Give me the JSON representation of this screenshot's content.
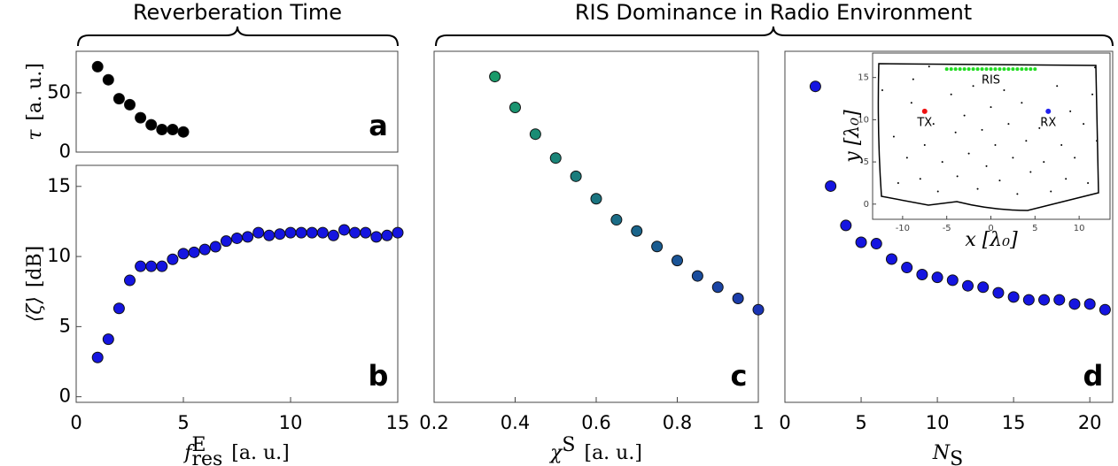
{
  "group_titles": [
    "Reverberation Time",
    "RIS Dominance in Radio Environment"
  ],
  "chart_data": [
    {
      "type": "scatter",
      "label": "a",
      "ylabel": {
        "base": "τ",
        "unit": "[a. u.]"
      },
      "x": [
        1,
        1.5,
        2,
        2.5,
        3,
        3.5,
        4,
        4.5,
        5
      ],
      "values": [
        72,
        61,
        45,
        40,
        29,
        23,
        19,
        19,
        17
      ],
      "color": "#000000",
      "xlim": [
        0,
        15
      ],
      "ylim": [
        0,
        85
      ],
      "yticks": [
        0,
        50
      ]
    },
    {
      "type": "scatter",
      "label": "b",
      "ylabel": {
        "base": "⟨ζ⟩",
        "unit": "[dB]"
      },
      "xlabel": {
        "base": "f",
        "sub": "res",
        "sup": "E",
        "unit": "[a. u.]"
      },
      "x": [
        1,
        1.5,
        2,
        2.5,
        3,
        3.5,
        4,
        4.5,
        5,
        5.5,
        6,
        6.5,
        7,
        7.5,
        8,
        8.5,
        9,
        9.5,
        10,
        10.5,
        11,
        11.5,
        12,
        12.5,
        13,
        13.5,
        14,
        14.5,
        15
      ],
      "values": [
        2.8,
        4.1,
        6.3,
        8.3,
        9.3,
        9.3,
        9.3,
        9.8,
        10.2,
        10.3,
        10.5,
        10.7,
        11.1,
        11.3,
        11.4,
        11.7,
        11.5,
        11.6,
        11.7,
        11.7,
        11.7,
        11.7,
        11.5,
        11.9,
        11.7,
        11.7,
        11.4,
        11.5,
        11.7
      ],
      "color": "#1515e0",
      "xlim": [
        0,
        15
      ],
      "ylim": [
        -0.4,
        16.5
      ],
      "xticks": [
        0,
        5,
        10,
        15
      ],
      "yticks": [
        0,
        5,
        10,
        15
      ]
    },
    {
      "type": "scatter",
      "label": "c",
      "xlabel": {
        "base": "χ",
        "sup": "S",
        "unit": "[a. u.]"
      },
      "x": [
        0.35,
        0.4,
        0.45,
        0.5,
        0.55,
        0.6,
        0.65,
        0.7,
        0.75,
        0.8,
        0.85,
        0.9,
        0.95,
        1
      ],
      "values": [
        22.8,
        20.6,
        18.7,
        17.0,
        15.7,
        14.1,
        12.6,
        11.8,
        10.7,
        9.7,
        8.6,
        7.8,
        7.0,
        6.2
      ],
      "colors": [
        "#1a9a6a",
        "#1a9470",
        "#1a8c74",
        "#1a8478",
        "#1a7c7c",
        "#1a7480",
        "#1a6c86",
        "#1a648a",
        "#1a5c90",
        "#1a5496",
        "#1a4c9c",
        "#1a44a4",
        "#1a3caa",
        "#1a34b4"
      ],
      "xlim": [
        0.2,
        1
      ],
      "ylim": [
        -0.4,
        24.6
      ],
      "xticks": [
        0.2,
        0.4,
        0.6,
        0.8,
        1
      ]
    },
    {
      "type": "scatter",
      "label": "d",
      "xlabel": {
        "base": "N",
        "sub": "S"
      },
      "x": [
        2,
        3,
        4,
        5,
        6,
        7,
        8,
        9,
        10,
        11,
        12,
        13,
        14,
        15,
        16,
        17,
        18,
        19,
        20,
        21
      ],
      "values": [
        22.1,
        15.0,
        12.2,
        11.0,
        10.9,
        9.8,
        9.2,
        8.7,
        8.5,
        8.3,
        7.9,
        7.8,
        7.4,
        7.1,
        6.9,
        6.9,
        6.9,
        6.6,
        6.6,
        6.2
      ],
      "color": "#1515e0",
      "xlim": [
        0,
        21.5
      ],
      "ylim": [
        -0.4,
        24.6
      ],
      "xticks": [
        0,
        5,
        10,
        15,
        20
      ]
    },
    {
      "type": "layout",
      "xlabel": "x [λ₀]",
      "ylabel": "y [λ₀]",
      "xlim": [
        -13.4,
        13.5
      ],
      "ylim": [
        -1.8,
        17.9
      ],
      "xticks": [
        -10,
        -5,
        0,
        5,
        10
      ],
      "yticks": [
        0,
        5,
        10,
        15
      ],
      "series": [
        {
          "color": "#000000",
          "x": [
            -12.3,
            -11,
            -10.5,
            -9.5,
            -9,
            -8.8,
            -8,
            -7.5,
            -6.5,
            -6,
            -5.5,
            -4.5,
            -4,
            -3.8,
            -3,
            -2.5,
            -2,
            -1.5,
            -1,
            -0.5,
            0,
            0.5,
            1,
            1.5,
            2,
            2.5,
            3,
            3.5,
            4,
            4.5,
            5.5,
            6,
            6.8,
            7.5,
            8,
            8.5,
            9,
            9.5,
            10.5,
            11,
            11.5,
            12,
            -7,
            11.8
          ],
          "values": [
            13.5,
            8,
            2.5,
            5.5,
            12,
            14.8,
            3,
            7,
            9.5,
            1.5,
            5,
            13,
            8.5,
            3.3,
            10.5,
            6,
            14,
            1.8,
            8.8,
            4.5,
            11.5,
            7,
            2.8,
            13.5,
            9.5,
            5.5,
            1.2,
            12,
            7.5,
            3.8,
            9,
            5,
            1.5,
            14,
            7,
            3,
            11,
            5.5,
            9.5,
            2.5,
            13,
            7.5,
            16.3,
            16.2
          ]
        },
        {
          "name": "RIS",
          "color": "#22dd22",
          "x": [
            -5,
            -4.5,
            -4,
            -3.5,
            -3,
            -2.5,
            -2,
            -1.5,
            -1,
            -0.5,
            0,
            0.5,
            1,
            1.5,
            2,
            2.5,
            3,
            3.5,
            4,
            4.5,
            5
          ],
          "values": [
            16,
            16,
            16,
            16,
            16,
            16,
            16,
            16,
            16,
            16,
            16,
            16,
            16,
            16,
            16,
            16,
            16,
            16,
            16,
            16,
            16
          ]
        },
        {
          "name": "TX",
          "color": "#ee1111",
          "x": [
            -7.5
          ],
          "values": [
            11
          ]
        },
        {
          "name": "RX",
          "color": "#2222ee",
          "x": [
            6.5
          ],
          "values": [
            11
          ]
        }
      ]
    }
  ]
}
